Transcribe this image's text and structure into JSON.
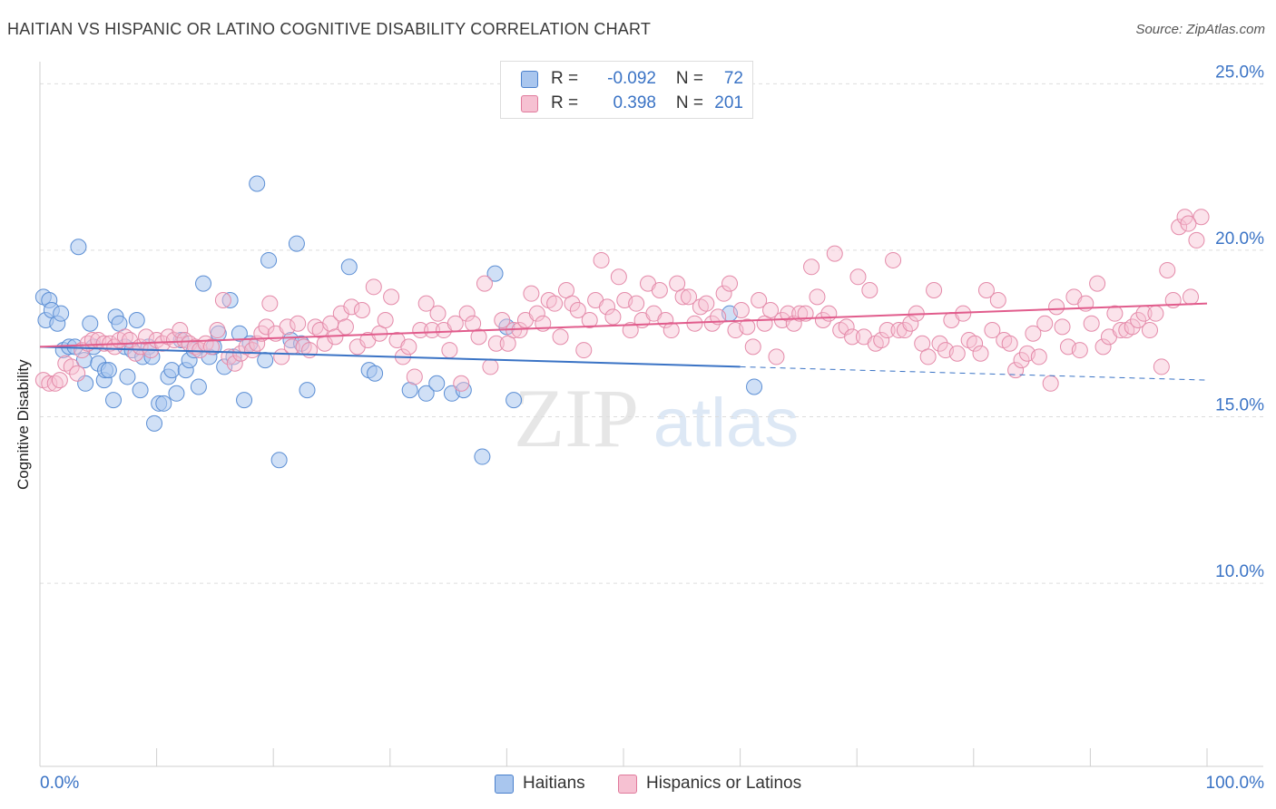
{
  "title": "HAITIAN VS HISPANIC OR LATINO COGNITIVE DISABILITY CORRELATION CHART",
  "source": "Source: ZipAtlas.com",
  "watermark": {
    "zip": "ZIP",
    "atlas": "atlas"
  },
  "legend": {
    "r_label": "R =",
    "n_label": "N =",
    "rows": [
      {
        "r": "-0.092",
        "n": "72",
        "fill": "#a9c6ee",
        "stroke": "#4a80cc"
      },
      {
        "r": "0.398",
        "n": "201",
        "fill": "#f6c1d2",
        "stroke": "#e07a9c"
      }
    ]
  },
  "bottom_legend": [
    "Haitians",
    "Hispanics or Latinos"
  ],
  "colors": {
    "blue": "#3a73c5",
    "pink": "#e15c8c",
    "tick_label": "#3a73c5",
    "grid": "#dddddd"
  },
  "chart_data": {
    "type": "scatter",
    "title": "HAITIAN VS HISPANIC OR LATINO COGNITIVE DISABILITY CORRELATION CHART",
    "xlabel": "",
    "ylabel": "Cognitive Disability",
    "xlim": [
      0,
      100
    ],
    "ylim": [
      4.5,
      25.5
    ],
    "x_tick_labels": [
      "0.0%",
      "100.0%"
    ],
    "y_ticks": [
      10,
      15,
      20,
      25
    ],
    "y_tick_labels": [
      "10.0%",
      "15.0%",
      "20.0%",
      "25.0%"
    ],
    "grid": "horizontal dashed",
    "legend_position": "top-center",
    "series": [
      {
        "name": "Haitians",
        "color": "#a9c6ee",
        "r": -0.092,
        "n": 72,
        "trend": {
          "x0": 0,
          "y0": 17.1,
          "x1": 60,
          "y1": 16.5,
          "dash_x1": 100,
          "dash_y1": 16.1
        },
        "points": [
          [
            0.3,
            18.6
          ],
          [
            0.5,
            17.9
          ],
          [
            0.8,
            18.5
          ],
          [
            1.0,
            18.2
          ],
          [
            1.5,
            17.8
          ],
          [
            1.8,
            18.1
          ],
          [
            2.0,
            17.0
          ],
          [
            2.5,
            17.1
          ],
          [
            3.0,
            17.1
          ],
          [
            3.3,
            20.1
          ],
          [
            3.8,
            16.7
          ],
          [
            3.9,
            16.0
          ],
          [
            4.3,
            17.8
          ],
          [
            4.6,
            17.1
          ],
          [
            5.0,
            16.6
          ],
          [
            5.5,
            16.1
          ],
          [
            5.6,
            16.4
          ],
          [
            5.9,
            16.4
          ],
          [
            6.3,
            15.5
          ],
          [
            6.5,
            18.0
          ],
          [
            6.8,
            17.8
          ],
          [
            7.3,
            17.1
          ],
          [
            7.5,
            16.2
          ],
          [
            7.9,
            17.0
          ],
          [
            8.3,
            17.9
          ],
          [
            8.6,
            15.8
          ],
          [
            8.8,
            16.8
          ],
          [
            9.3,
            17.1
          ],
          [
            9.6,
            16.8
          ],
          [
            9.8,
            14.8
          ],
          [
            10.2,
            15.4
          ],
          [
            10.6,
            15.4
          ],
          [
            11.0,
            16.2
          ],
          [
            11.3,
            16.4
          ],
          [
            11.7,
            15.7
          ],
          [
            12.1,
            17.3
          ],
          [
            12.5,
            16.4
          ],
          [
            12.8,
            16.7
          ],
          [
            13.2,
            17.0
          ],
          [
            13.6,
            15.9
          ],
          [
            14.0,
            19.0
          ],
          [
            14.5,
            16.8
          ],
          [
            14.9,
            17.1
          ],
          [
            15.3,
            17.5
          ],
          [
            15.8,
            16.5
          ],
          [
            16.3,
            18.5
          ],
          [
            16.6,
            16.8
          ],
          [
            17.1,
            17.5
          ],
          [
            17.5,
            15.5
          ],
          [
            18.0,
            17.2
          ],
          [
            18.6,
            22.0
          ],
          [
            19.3,
            16.7
          ],
          [
            19.6,
            19.7
          ],
          [
            20.5,
            13.7
          ],
          [
            21.5,
            17.3
          ],
          [
            22.0,
            20.2
          ],
          [
            22.4,
            17.2
          ],
          [
            22.9,
            15.8
          ],
          [
            26.5,
            19.5
          ],
          [
            28.2,
            16.4
          ],
          [
            28.7,
            16.3
          ],
          [
            31.7,
            15.8
          ],
          [
            33.1,
            15.7
          ],
          [
            34.0,
            16.0
          ],
          [
            35.3,
            15.7
          ],
          [
            36.3,
            15.8
          ],
          [
            37.9,
            13.8
          ],
          [
            39.0,
            19.3
          ],
          [
            40.0,
            17.7
          ],
          [
            40.6,
            15.5
          ],
          [
            59.1,
            18.1
          ],
          [
            61.2,
            15.9
          ]
        ]
      },
      {
        "name": "Hispanics or Latinos",
        "color": "#f6c1d2",
        "r": 0.398,
        "n": 201,
        "trend": {
          "x0": 0,
          "y0": 17.1,
          "x1": 100,
          "y1": 18.4
        },
        "points": [
          [
            0.3,
            16.1
          ],
          [
            0.8,
            16.0
          ],
          [
            1.3,
            16.0
          ],
          [
            1.7,
            16.1
          ],
          [
            2.2,
            16.6
          ],
          [
            2.7,
            16.5
          ],
          [
            3.2,
            16.3
          ],
          [
            3.6,
            17.0
          ],
          [
            4.1,
            17.2
          ],
          [
            4.5,
            17.3
          ],
          [
            5.0,
            17.3
          ],
          [
            5.5,
            17.2
          ],
          [
            6.0,
            17.2
          ],
          [
            6.4,
            17.1
          ],
          [
            6.8,
            17.3
          ],
          [
            7.3,
            17.4
          ],
          [
            7.7,
            17.3
          ],
          [
            8.2,
            16.9
          ],
          [
            8.6,
            17.1
          ],
          [
            9.1,
            17.4
          ],
          [
            9.5,
            17.0
          ],
          [
            10.0,
            17.3
          ],
          [
            10.5,
            17.2
          ],
          [
            11.0,
            17.4
          ],
          [
            11.5,
            17.3
          ],
          [
            12.0,
            17.6
          ],
          [
            12.4,
            17.3
          ],
          [
            12.8,
            17.2
          ],
          [
            13.3,
            17.1
          ],
          [
            13.7,
            17.0
          ],
          [
            14.2,
            17.2
          ],
          [
            14.7,
            17.1
          ],
          [
            15.2,
            17.6
          ],
          [
            15.7,
            18.5
          ],
          [
            16.2,
            16.8
          ],
          [
            16.7,
            16.6
          ],
          [
            17.2,
            16.9
          ],
          [
            17.7,
            17.1
          ],
          [
            18.2,
            17.0
          ],
          [
            18.6,
            17.2
          ],
          [
            19.0,
            17.5
          ],
          [
            19.4,
            17.7
          ],
          [
            19.7,
            18.4
          ],
          [
            20.2,
            17.5
          ],
          [
            20.7,
            16.8
          ],
          [
            21.2,
            17.7
          ],
          [
            21.6,
            17.1
          ],
          [
            22.1,
            17.8
          ],
          [
            22.6,
            17.1
          ],
          [
            23.1,
            17.0
          ],
          [
            23.6,
            17.7
          ],
          [
            24.0,
            17.6
          ],
          [
            24.4,
            17.2
          ],
          [
            24.9,
            17.8
          ],
          [
            25.3,
            17.4
          ],
          [
            25.8,
            18.1
          ],
          [
            26.2,
            17.7
          ],
          [
            26.7,
            18.3
          ],
          [
            27.2,
            17.1
          ],
          [
            27.6,
            18.2
          ],
          [
            28.1,
            17.3
          ],
          [
            28.6,
            18.9
          ],
          [
            29.1,
            17.5
          ],
          [
            29.6,
            17.9
          ],
          [
            30.1,
            18.6
          ],
          [
            30.6,
            17.3
          ],
          [
            31.1,
            16.8
          ],
          [
            31.6,
            17.1
          ],
          [
            32.1,
            16.2
          ],
          [
            32.6,
            17.6
          ],
          [
            33.1,
            18.4
          ],
          [
            33.6,
            17.6
          ],
          [
            34.1,
            18.1
          ],
          [
            34.6,
            17.6
          ],
          [
            35.1,
            17.0
          ],
          [
            35.6,
            17.8
          ],
          [
            36.1,
            16.0
          ],
          [
            36.6,
            18.1
          ],
          [
            37.1,
            17.8
          ],
          [
            37.6,
            17.4
          ],
          [
            38.1,
            19.0
          ],
          [
            38.6,
            16.5
          ],
          [
            39.1,
            17.2
          ],
          [
            39.6,
            17.9
          ],
          [
            40.1,
            17.2
          ],
          [
            40.6,
            17.6
          ],
          [
            41.1,
            17.6
          ],
          [
            41.6,
            17.9
          ],
          [
            42.1,
            18.7
          ],
          [
            42.6,
            18.1
          ],
          [
            43.1,
            17.8
          ],
          [
            43.6,
            18.5
          ],
          [
            44.1,
            18.4
          ],
          [
            44.6,
            17.4
          ],
          [
            45.1,
            18.8
          ],
          [
            45.6,
            18.4
          ],
          [
            46.1,
            18.2
          ],
          [
            46.6,
            17.0
          ],
          [
            47.1,
            17.9
          ],
          [
            47.6,
            18.5
          ],
          [
            48.1,
            19.7
          ],
          [
            48.6,
            18.3
          ],
          [
            49.1,
            18.0
          ],
          [
            49.6,
            19.2
          ],
          [
            50.1,
            18.5
          ],
          [
            50.6,
            17.6
          ],
          [
            51.1,
            18.4
          ],
          [
            51.6,
            17.9
          ],
          [
            52.1,
            19.0
          ],
          [
            52.6,
            18.1
          ],
          [
            53.1,
            18.8
          ],
          [
            53.6,
            17.9
          ],
          [
            54.1,
            17.6
          ],
          [
            54.6,
            19.0
          ],
          [
            55.1,
            18.6
          ],
          [
            55.6,
            18.6
          ],
          [
            56.1,
            17.8
          ],
          [
            56.6,
            18.3
          ],
          [
            57.1,
            18.4
          ],
          [
            57.6,
            17.8
          ],
          [
            58.1,
            18.0
          ],
          [
            58.6,
            18.7
          ],
          [
            59.1,
            19.0
          ],
          [
            59.6,
            17.6
          ],
          [
            60.1,
            18.2
          ],
          [
            60.6,
            17.7
          ],
          [
            61.1,
            17.1
          ],
          [
            61.6,
            18.5
          ],
          [
            62.1,
            17.8
          ],
          [
            62.6,
            18.2
          ],
          [
            63.1,
            16.8
          ],
          [
            63.6,
            17.9
          ],
          [
            64.1,
            18.1
          ],
          [
            64.6,
            17.8
          ],
          [
            65.1,
            18.1
          ],
          [
            65.6,
            18.1
          ],
          [
            66.1,
            19.5
          ],
          [
            66.6,
            18.6
          ],
          [
            67.1,
            17.9
          ],
          [
            67.6,
            18.1
          ],
          [
            68.1,
            19.9
          ],
          [
            68.6,
            17.6
          ],
          [
            69.1,
            17.7
          ],
          [
            69.6,
            17.4
          ],
          [
            70.1,
            19.2
          ],
          [
            70.6,
            17.4
          ],
          [
            71.1,
            18.8
          ],
          [
            71.6,
            17.2
          ],
          [
            72.1,
            17.3
          ],
          [
            72.6,
            17.6
          ],
          [
            73.1,
            19.7
          ],
          [
            73.6,
            17.6
          ],
          [
            74.1,
            17.6
          ],
          [
            74.6,
            17.8
          ],
          [
            75.1,
            18.1
          ],
          [
            75.6,
            17.2
          ],
          [
            76.1,
            16.8
          ],
          [
            76.6,
            18.8
          ],
          [
            77.1,
            17.2
          ],
          [
            77.6,
            17.0
          ],
          [
            78.1,
            17.9
          ],
          [
            78.6,
            16.9
          ],
          [
            79.1,
            18.1
          ],
          [
            79.6,
            17.3
          ],
          [
            80.1,
            17.2
          ],
          [
            80.6,
            16.9
          ],
          [
            81.1,
            18.8
          ],
          [
            81.6,
            17.6
          ],
          [
            82.1,
            18.5
          ],
          [
            82.6,
            17.3
          ],
          [
            83.1,
            17.2
          ],
          [
            83.6,
            16.4
          ],
          [
            84.1,
            16.7
          ],
          [
            84.6,
            16.9
          ],
          [
            85.1,
            17.5
          ],
          [
            85.6,
            16.8
          ],
          [
            86.1,
            17.8
          ],
          [
            86.6,
            16.0
          ],
          [
            87.1,
            18.3
          ],
          [
            87.6,
            17.7
          ],
          [
            88.1,
            17.1
          ],
          [
            88.6,
            18.6
          ],
          [
            89.1,
            17.0
          ],
          [
            89.6,
            18.4
          ],
          [
            90.1,
            17.8
          ],
          [
            90.6,
            19.0
          ],
          [
            91.1,
            17.1
          ],
          [
            91.6,
            17.4
          ],
          [
            92.1,
            18.1
          ],
          [
            92.6,
            17.6
          ],
          [
            93.1,
            17.6
          ],
          [
            93.6,
            17.7
          ],
          [
            94.1,
            17.9
          ],
          [
            94.6,
            18.1
          ],
          [
            95.1,
            17.6
          ],
          [
            95.6,
            18.1
          ],
          [
            96.1,
            16.5
          ],
          [
            96.6,
            19.4
          ],
          [
            97.1,
            18.5
          ],
          [
            97.6,
            20.7
          ],
          [
            98.1,
            21.0
          ],
          [
            98.6,
            18.6
          ],
          [
            99.1,
            20.3
          ],
          [
            99.5,
            21.0
          ],
          [
            98.4,
            20.8
          ]
        ]
      }
    ]
  }
}
